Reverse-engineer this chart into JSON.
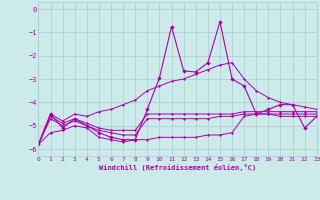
{
  "xlabel": "Windchill (Refroidissement éolien,°C)",
  "xlim": [
    0,
    23
  ],
  "ylim": [
    -6.3,
    0.3
  ],
  "yticks": [
    0,
    -1,
    -2,
    -3,
    -4,
    -5,
    -6
  ],
  "xticks": [
    0,
    1,
    2,
    3,
    4,
    5,
    6,
    7,
    8,
    9,
    10,
    11,
    12,
    13,
    14,
    15,
    16,
    17,
    18,
    19,
    20,
    21,
    22,
    23
  ],
  "bg_color": "#cceaea",
  "line_color": "#aa00aa",
  "grid_color": "#aacccc",
  "lines": [
    {
      "x": [
        0,
        1,
        2,
        3,
        4,
        5,
        6,
        7,
        8,
        9,
        10,
        11,
        12,
        13,
        14,
        15,
        16,
        17,
        18,
        19,
        20,
        21,
        22,
        23
      ],
      "y": [
        -5.8,
        -5.3,
        -5.2,
        -5.0,
        -5.1,
        -5.5,
        -5.6,
        -5.7,
        -5.6,
        -5.6,
        -5.5,
        -5.5,
        -5.5,
        -5.5,
        -5.4,
        -5.4,
        -5.3,
        -4.6,
        -4.5,
        -4.5,
        -4.6,
        -4.6,
        -4.6,
        -4.6
      ]
    },
    {
      "x": [
        0,
        1,
        2,
        3,
        4,
        5,
        6,
        7,
        8,
        9,
        10,
        11,
        12,
        13,
        14,
        15,
        16,
        17,
        18,
        19,
        20,
        21,
        22,
        23
      ],
      "y": [
        -5.8,
        -4.7,
        -5.0,
        -4.8,
        -5.0,
        -5.2,
        -5.3,
        -5.4,
        -5.4,
        -4.7,
        -4.7,
        -4.7,
        -4.7,
        -4.7,
        -4.7,
        -4.6,
        -4.6,
        -4.5,
        -4.5,
        -4.5,
        -4.5,
        -4.5,
        -4.5,
        -4.5
      ]
    },
    {
      "x": [
        0,
        1,
        2,
        3,
        4,
        5,
        6,
        7,
        8,
        9,
        10,
        11,
        12,
        13,
        14,
        15,
        16,
        17,
        18,
        19,
        20,
        21,
        22,
        23
      ],
      "y": [
        -5.8,
        -4.6,
        -4.9,
        -4.7,
        -4.9,
        -5.1,
        -5.2,
        -5.2,
        -5.2,
        -4.5,
        -4.5,
        -4.5,
        -4.5,
        -4.5,
        -4.5,
        -4.5,
        -4.5,
        -4.4,
        -4.4,
        -4.4,
        -4.4,
        -4.4,
        -4.4,
        -4.4
      ]
    },
    {
      "x": [
        0,
        1,
        2,
        3,
        4,
        5,
        6,
        7,
        8,
        9,
        10,
        11,
        12,
        13,
        14,
        15,
        16,
        17,
        18,
        19,
        20,
        21,
        22,
        23
      ],
      "y": [
        -5.8,
        -4.5,
        -4.8,
        -4.5,
        -4.6,
        -4.4,
        -4.3,
        -4.1,
        -3.9,
        -3.5,
        -3.3,
        -3.1,
        -3.0,
        -2.8,
        -2.6,
        -2.4,
        -2.3,
        -3.0,
        -3.5,
        -3.8,
        -4.0,
        -4.1,
        -4.2,
        -4.3
      ]
    },
    {
      "x": [
        0,
        1,
        2,
        3,
        4,
        5,
        6,
        7,
        8,
        9,
        10,
        11,
        12,
        13,
        14,
        15,
        16,
        17,
        18,
        19,
        20,
        21,
        22,
        23
      ],
      "y": [
        -5.8,
        -4.5,
        -5.1,
        -4.7,
        -5.0,
        -5.3,
        -5.5,
        -5.6,
        -5.6,
        -4.3,
        -2.95,
        -0.75,
        -2.65,
        -2.7,
        -2.3,
        -0.55,
        -3.0,
        -3.3,
        -4.5,
        -4.3,
        -4.1,
        -4.1,
        -5.1,
        -4.6
      ]
    }
  ]
}
